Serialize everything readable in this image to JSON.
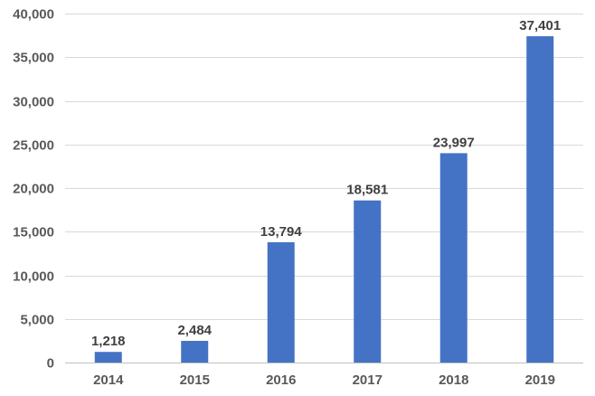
{
  "chart_data": {
    "type": "bar",
    "categories": [
      "2014",
      "2015",
      "2016",
      "2017",
      "2018",
      "2019"
    ],
    "values": [
      1218,
      2484,
      13794,
      18581,
      23997,
      37401
    ],
    "value_labels": [
      "1,218",
      "2,484",
      "13,794",
      "18,581",
      "23,997",
      "37,401"
    ],
    "title": "",
    "xlabel": "",
    "ylabel": "",
    "ylim": [
      0,
      40000
    ],
    "yticks": [
      0,
      5000,
      10000,
      15000,
      20000,
      25000,
      30000,
      35000,
      40000
    ],
    "ytick_labels": [
      "0",
      "5,000",
      "10,000",
      "15,000",
      "20,000",
      "25,000",
      "30,000",
      "35,000",
      "40,000"
    ],
    "grid": true,
    "legend": "none",
    "colors": {
      "bar": "#4472c4",
      "grid": "#d9d9d9",
      "axis": "#bfbfbf"
    }
  }
}
